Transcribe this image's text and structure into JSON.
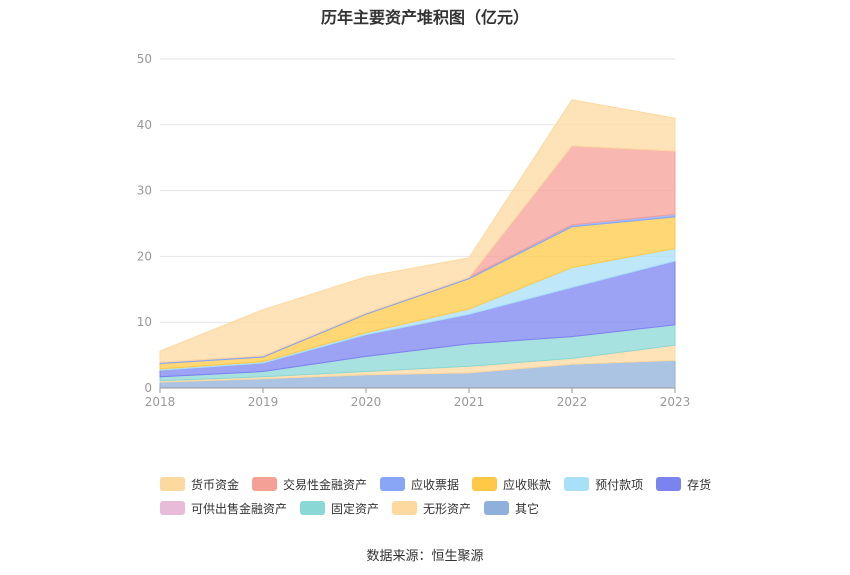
{
  "title": "历年主要资产堆积图（亿元）",
  "source": "数据来源：恒生聚源",
  "chart_data": {
    "type": "area",
    "stacked": true,
    "categories": [
      "2018",
      "2019",
      "2020",
      "2021",
      "2022",
      "2023"
    ],
    "ylim": [
      0,
      50
    ],
    "yticks": [
      0,
      10,
      20,
      30,
      40,
      50
    ],
    "grid": true,
    "legend_position": "bottom",
    "series": [
      {
        "name": "其它",
        "color": "#8fb0da",
        "values": [
          0.9,
          1.4,
          2.0,
          2.3,
          3.6,
          4.2
        ]
      },
      {
        "name": "无形资产",
        "color": "#fdd9a0",
        "values": [
          0.2,
          0.3,
          0.5,
          1.0,
          0.9,
          2.3
        ]
      },
      {
        "name": "固定资产",
        "color": "#8ad8d5",
        "values": [
          0.6,
          0.8,
          2.3,
          3.4,
          3.3,
          3.1
        ]
      },
      {
        "name": "可供出售金融资产",
        "color": "#e8bbd8",
        "values": [
          0,
          0,
          0,
          0,
          0,
          0
        ]
      },
      {
        "name": "存货",
        "color": "#7b83f0",
        "values": [
          1.0,
          1.3,
          3.3,
          4.5,
          7.5,
          9.7
        ]
      },
      {
        "name": "预付款项",
        "color": "#a8e0f8",
        "values": [
          0.2,
          0.2,
          0.3,
          0.8,
          3.0,
          1.9
        ]
      },
      {
        "name": "应收账款",
        "color": "#ffc947",
        "values": [
          0.8,
          0.7,
          2.8,
          4.6,
          6.2,
          4.8
        ]
      },
      {
        "name": "应收票据",
        "color": "#88a6f5",
        "values": [
          0.2,
          0.2,
          0.2,
          0.2,
          0.3,
          0.4
        ]
      },
      {
        "name": "交易性金融资产",
        "color": "#f5a097",
        "values": [
          0,
          0,
          0,
          0,
          12.0,
          9.6
        ]
      },
      {
        "name": "货币资金",
        "color": "#fdd9a0",
        "values": [
          1.7,
          7.0,
          5.5,
          3.0,
          7.0,
          5.0
        ]
      }
    ],
    "legend_order": [
      [
        "货币资金",
        "交易性金融资产",
        "应收票据",
        "应收账款",
        "预付款项",
        "存货"
      ],
      [
        "可供出售金融资产",
        "固定资产",
        "无形资产",
        "其它"
      ]
    ]
  }
}
